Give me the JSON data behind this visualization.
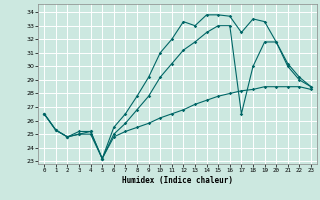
{
  "xlabel": "Humidex (Indice chaleur)",
  "bg_color": "#cce8e0",
  "grid_color": "#ffffff",
  "line_color": "#006666",
  "xlim": [
    -0.5,
    23.5
  ],
  "ylim": [
    22.8,
    34.6
  ],
  "xticks": [
    0,
    1,
    2,
    3,
    4,
    5,
    6,
    7,
    8,
    9,
    10,
    11,
    12,
    13,
    14,
    15,
    16,
    17,
    18,
    19,
    20,
    21,
    22,
    23
  ],
  "yticks": [
    23,
    24,
    25,
    26,
    27,
    28,
    29,
    30,
    31,
    32,
    33,
    34
  ],
  "line1_x": [
    0,
    1,
    2,
    3,
    4,
    5,
    6,
    7,
    8,
    9,
    10,
    11,
    12,
    13,
    14,
    15,
    16,
    17,
    18,
    19,
    20,
    21,
    22,
    23
  ],
  "line1_y": [
    26.5,
    25.3,
    24.8,
    25.2,
    25.2,
    23.2,
    25.5,
    26.5,
    27.8,
    29.2,
    31.0,
    32.0,
    33.3,
    33.0,
    33.8,
    33.8,
    33.7,
    32.5,
    33.5,
    33.3,
    31.8,
    30.2,
    29.2,
    28.5
  ],
  "line2_x": [
    0,
    1,
    2,
    3,
    4,
    5,
    6,
    7,
    8,
    9,
    10,
    11,
    12,
    13,
    14,
    15,
    16,
    17,
    18,
    19,
    20,
    21,
    22,
    23
  ],
  "line2_y": [
    26.5,
    25.3,
    24.8,
    25.0,
    25.2,
    23.2,
    25.0,
    25.8,
    26.8,
    27.8,
    29.2,
    30.2,
    31.2,
    31.8,
    32.5,
    33.0,
    33.0,
    26.5,
    30.0,
    31.8,
    31.8,
    30.0,
    29.0,
    28.5
  ],
  "line3_x": [
    0,
    1,
    2,
    3,
    4,
    5,
    6,
    7,
    8,
    9,
    10,
    11,
    12,
    13,
    14,
    15,
    16,
    17,
    18,
    19,
    20,
    21,
    22,
    23
  ],
  "line3_y": [
    26.5,
    25.3,
    24.8,
    25.0,
    25.0,
    23.2,
    24.8,
    25.2,
    25.5,
    25.8,
    26.2,
    26.5,
    26.8,
    27.2,
    27.5,
    27.8,
    28.0,
    28.2,
    28.3,
    28.5,
    28.5,
    28.5,
    28.5,
    28.3
  ]
}
